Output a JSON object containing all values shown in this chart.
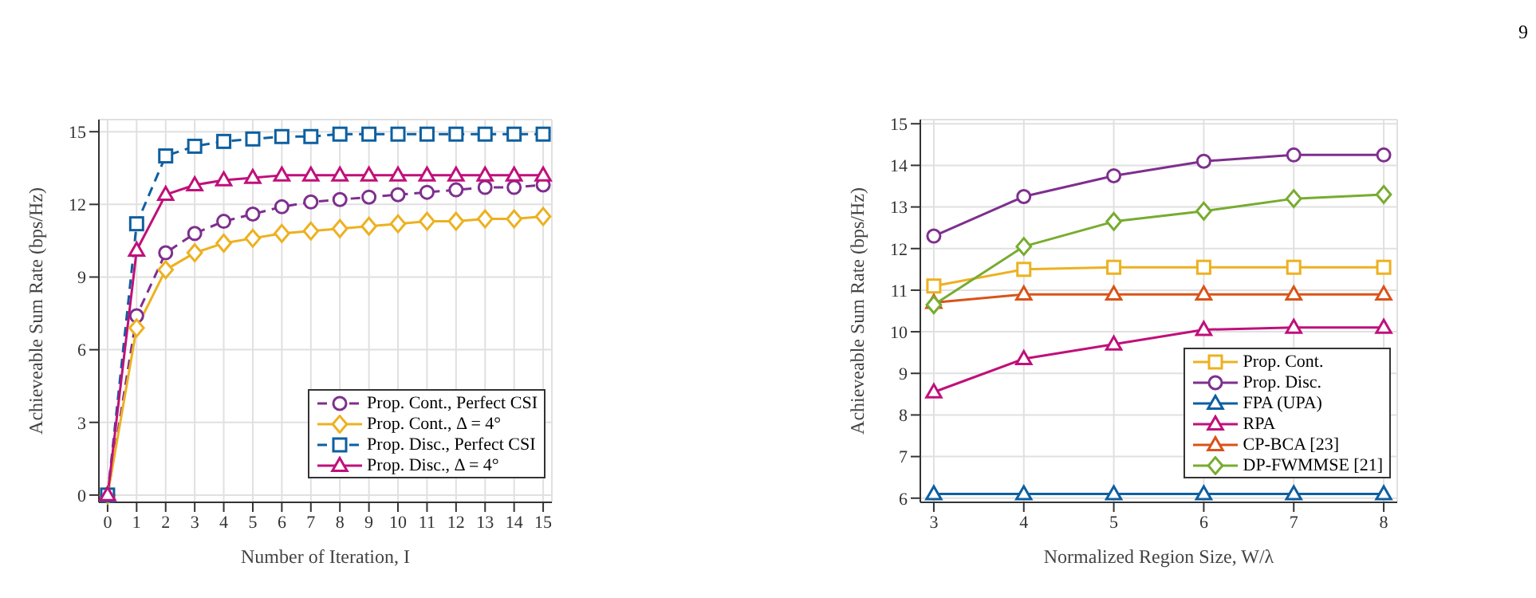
{
  "chart_data": [
    {
      "type": "line",
      "xlabel": "Number of Iteration, I",
      "ylabel": "Achieveable Sum Rate (bps/Hz)",
      "x": [
        0,
        1,
        2,
        3,
        4,
        5,
        6,
        7,
        8,
        9,
        10,
        11,
        12,
        13,
        14,
        15
      ],
      "xlim": [
        -0.3,
        15.3
      ],
      "xticks": [
        0,
        1,
        2,
        3,
        4,
        5,
        6,
        7,
        8,
        9,
        10,
        11,
        12,
        13,
        14,
        15
      ],
      "ylim": [
        -0.3,
        15.5
      ],
      "yticks": [
        0,
        3,
        6,
        9,
        12,
        15
      ],
      "grid": true,
      "legend": "bottom right",
      "series": [
        {
          "name": "Prop. Cont., Perfect CSI",
          "color": "#7e2f8e",
          "marker": "circle",
          "line_style": "dashed",
          "values": [
            0,
            7.4,
            10.0,
            10.8,
            11.3,
            11.6,
            11.9,
            12.1,
            12.2,
            12.3,
            12.4,
            12.5,
            12.6,
            12.7,
            12.7,
            12.8
          ]
        },
        {
          "name": "Prop. Cont., Δ = 4°",
          "color": "#edb120",
          "marker": "diamond",
          "line_style": "solid",
          "values": [
            0,
            6.9,
            9.3,
            10.0,
            10.4,
            10.6,
            10.8,
            10.9,
            11.0,
            11.1,
            11.2,
            11.3,
            11.3,
            11.4,
            11.4,
            11.5
          ]
        },
        {
          "name": "Prop. Disc., Perfect CSI",
          "color": "#0e5fa0",
          "marker": "square",
          "line_style": "dashed",
          "values": [
            0,
            11.2,
            14.0,
            14.4,
            14.6,
            14.7,
            14.8,
            14.8,
            14.9,
            14.9,
            14.9,
            14.9,
            14.9,
            14.9,
            14.9,
            14.9
          ]
        },
        {
          "name": "Prop. Disc., Δ = 4°",
          "color": "#c0107a",
          "marker": "triangle",
          "line_style": "solid",
          "values": [
            0,
            10.1,
            12.4,
            12.8,
            13.0,
            13.1,
            13.2,
            13.2,
            13.2,
            13.2,
            13.2,
            13.2,
            13.2,
            13.2,
            13.2,
            13.2
          ]
        }
      ]
    },
    {
      "type": "line",
      "xlabel": "Normalized Region Size, W/λ",
      "ylabel": "Achieveable Sum Rate (bps/Hz)",
      "x": [
        3,
        4,
        5,
        6,
        7,
        8
      ],
      "xlim": [
        2.85,
        8.15
      ],
      "xticks": [
        3,
        4,
        5,
        6,
        7,
        8
      ],
      "ylim": [
        5.9,
        15.1
      ],
      "yticks": [
        6,
        7,
        8,
        9,
        10,
        11,
        12,
        13,
        14,
        15
      ],
      "grid": true,
      "legend": "bottom right",
      "annotations": [
        "9"
      ],
      "series": [
        {
          "name": "Prop. Cont.",
          "color": "#edb120",
          "marker": "square",
          "line_style": "solid",
          "values": [
            11.1,
            11.5,
            11.55,
            11.55,
            11.55,
            11.55
          ]
        },
        {
          "name": "Prop. Disc.",
          "color": "#7e2f8e",
          "marker": "circle",
          "line_style": "solid",
          "values": [
            12.3,
            13.25,
            13.75,
            14.1,
            14.25,
            14.25
          ]
        },
        {
          "name": "FPA (UPA)",
          "color": "#0e5fa0",
          "marker": "triangle",
          "line_style": "solid",
          "values": [
            6.1,
            6.1,
            6.1,
            6.1,
            6.1,
            6.1
          ]
        },
        {
          "name": "RPA",
          "color": "#c0107a",
          "marker": "triangle",
          "line_style": "solid",
          "values": [
            8.55,
            9.35,
            9.7,
            10.05,
            10.1,
            10.1
          ]
        },
        {
          "name": "CP-BCA [23]",
          "color": "#d95319",
          "marker": "triangle",
          "line_style": "solid",
          "values": [
            10.7,
            10.9,
            10.9,
            10.9,
            10.9,
            10.9
          ]
        },
        {
          "name": "DP-FWMMSE [21]",
          "color": "#77ac30",
          "marker": "diamond",
          "line_style": "solid",
          "values": [
            10.65,
            12.05,
            12.65,
            12.9,
            13.2,
            13.3
          ]
        }
      ]
    }
  ]
}
